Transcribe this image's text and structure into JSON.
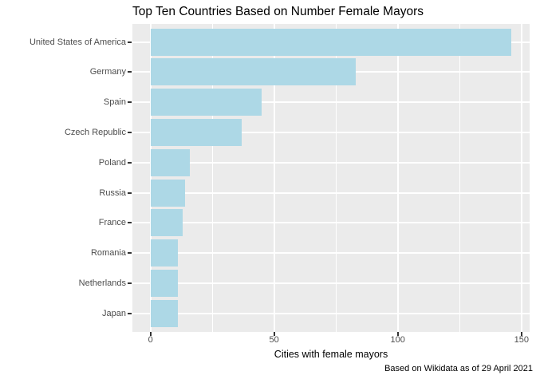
{
  "chart_data": {
    "type": "bar",
    "orientation": "horizontal",
    "title": "Top Ten Countries Based on Number Female Mayors",
    "xlabel": "Cities with female mayors",
    "ylabel": "",
    "caption": "Based on Wikidata as of 29 April 2021",
    "categories": [
      "United States of America",
      "Germany",
      "Spain",
      "Czech Republic",
      "Poland",
      "Russia",
      "France",
      "Romania",
      "Netherlands",
      "Japan"
    ],
    "values": [
      146,
      83,
      45,
      37,
      16,
      14,
      13,
      11,
      11,
      11
    ],
    "x_ticks": [
      0,
      50,
      100,
      150
    ],
    "x_minor_ticks": [
      25,
      75,
      125
    ],
    "xlim": [
      -7.3,
      153.3
    ],
    "grid": true,
    "legend": false,
    "colors": {
      "bar_fill": "#ADD8E6",
      "panel_background": "#EBEBEB",
      "gridline": "#FFFFFF",
      "tick_mark": "#333333",
      "tick_text": "#4D4D4D",
      "text": "#000000"
    }
  }
}
